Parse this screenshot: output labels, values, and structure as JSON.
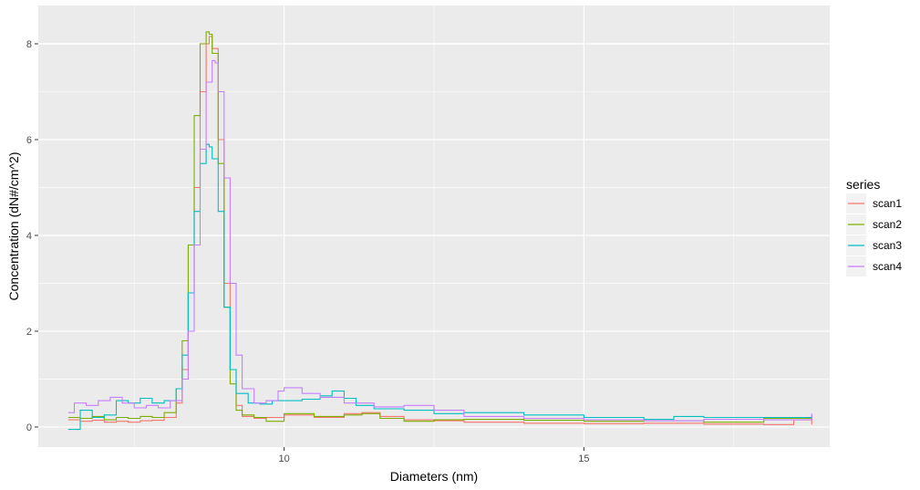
{
  "chart_data": {
    "type": "line",
    "title": "",
    "xlabel": "Diameters (nm)",
    "ylabel": "Concentration (dN#/cm^2)",
    "xlim": [
      5.9,
      19.1
    ],
    "ylim": [
      -0.42,
      8.8
    ],
    "x_ticks": [
      10,
      15
    ],
    "x_tick_labels": [
      "10",
      "15"
    ],
    "y_ticks": [
      0,
      2,
      4,
      6,
      8
    ],
    "y_tick_labels": [
      "0",
      "2",
      "4",
      "6",
      "8"
    ],
    "grid": true,
    "panel_background": "#ebebeb",
    "legend": {
      "title": "series",
      "position": "right"
    },
    "series": [
      {
        "name": "scan1",
        "color": "#F8766D",
        "x": [
          6.4,
          6.6,
          6.8,
          7.0,
          7.2,
          7.4,
          7.6,
          7.8,
          8.0,
          8.2,
          8.3,
          8.4,
          8.5,
          8.6,
          8.7,
          8.75,
          8.8,
          8.9,
          9.0,
          9.1,
          9.2,
          9.3,
          9.5,
          9.7,
          10.0,
          10.5,
          11.0,
          11.3,
          11.6,
          12.0,
          12.5,
          13.0,
          14.0,
          15.0,
          16.0,
          17.0,
          18.0,
          18.5,
          18.8
        ],
        "y": [
          0.15,
          0.12,
          0.14,
          0.1,
          0.12,
          0.1,
          0.13,
          0.14,
          0.2,
          0.5,
          1.2,
          2.8,
          5.0,
          7.0,
          8.0,
          8.15,
          7.9,
          6.0,
          3.0,
          1.2,
          0.45,
          0.22,
          0.18,
          0.2,
          0.25,
          0.2,
          0.28,
          0.3,
          0.22,
          0.15,
          0.13,
          0.1,
          0.08,
          0.07,
          0.08,
          0.06,
          0.05,
          0.15,
          0.05
        ]
      },
      {
        "name": "scan2",
        "color": "#7CAE00",
        "x": [
          6.4,
          6.6,
          6.8,
          7.0,
          7.2,
          7.4,
          7.6,
          7.8,
          8.0,
          8.2,
          8.3,
          8.4,
          8.5,
          8.6,
          8.7,
          8.75,
          8.8,
          8.9,
          9.0,
          9.1,
          9.2,
          9.3,
          9.5,
          9.7,
          10.0,
          10.5,
          11.0,
          11.3,
          11.6,
          12.0,
          12.5,
          13.0,
          14.0,
          15.0,
          16.0,
          17.0,
          18.0,
          18.8
        ],
        "y": [
          0.2,
          0.18,
          0.22,
          0.15,
          0.2,
          0.18,
          0.22,
          0.2,
          0.3,
          0.8,
          1.8,
          3.8,
          6.5,
          8.0,
          8.25,
          8.2,
          7.8,
          5.5,
          2.5,
          0.9,
          0.35,
          0.25,
          0.2,
          0.12,
          0.28,
          0.22,
          0.25,
          0.28,
          0.18,
          0.12,
          0.15,
          0.16,
          0.14,
          0.12,
          0.13,
          0.1,
          0.18,
          0.25
        ]
      },
      {
        "name": "scan3",
        "color": "#00BFC4",
        "x": [
          6.4,
          6.6,
          6.8,
          7.0,
          7.2,
          7.4,
          7.6,
          7.8,
          8.0,
          8.2,
          8.3,
          8.4,
          8.5,
          8.6,
          8.7,
          8.75,
          8.8,
          8.9,
          9.0,
          9.1,
          9.2,
          9.4,
          9.6,
          9.8,
          10.0,
          10.3,
          10.6,
          10.8,
          11.0,
          11.2,
          11.5,
          12.0,
          12.5,
          13.0,
          13.5,
          14.0,
          15.0,
          16.0,
          16.5,
          17.0,
          18.0,
          18.8
        ],
        "y": [
          -0.05,
          0.35,
          0.2,
          0.25,
          0.55,
          0.5,
          0.6,
          0.5,
          0.55,
          0.8,
          1.5,
          2.8,
          4.5,
          5.5,
          5.9,
          5.85,
          5.6,
          4.5,
          2.5,
          1.2,
          0.7,
          0.5,
          0.48,
          0.55,
          0.55,
          0.58,
          0.65,
          0.75,
          0.6,
          0.45,
          0.38,
          0.35,
          0.28,
          0.3,
          0.3,
          0.25,
          0.2,
          0.16,
          0.22,
          0.2,
          0.2,
          0.15
        ]
      },
      {
        "name": "scan4",
        "color": "#C77CFF",
        "x": [
          6.4,
          6.5,
          6.7,
          6.9,
          7.1,
          7.3,
          7.5,
          7.7,
          7.9,
          8.1,
          8.3,
          8.4,
          8.5,
          8.6,
          8.7,
          8.8,
          8.85,
          8.9,
          9.0,
          9.1,
          9.2,
          9.3,
          9.5,
          9.7,
          9.9,
          10.0,
          10.3,
          10.6,
          11.0,
          11.5,
          12.0,
          12.5,
          13.0,
          14.0,
          15.0,
          16.0,
          17.0,
          18.0,
          18.8
        ],
        "y": [
          0.3,
          0.5,
          0.45,
          0.55,
          0.62,
          0.5,
          0.4,
          0.45,
          0.4,
          0.55,
          1.0,
          2.0,
          3.8,
          5.8,
          7.2,
          7.65,
          7.6,
          7.0,
          5.2,
          3.0,
          1.5,
          0.8,
          0.5,
          0.55,
          0.75,
          0.82,
          0.7,
          0.62,
          0.5,
          0.42,
          0.45,
          0.35,
          0.22,
          0.18,
          0.15,
          0.13,
          0.16,
          0.15,
          0.28
        ]
      }
    ]
  }
}
